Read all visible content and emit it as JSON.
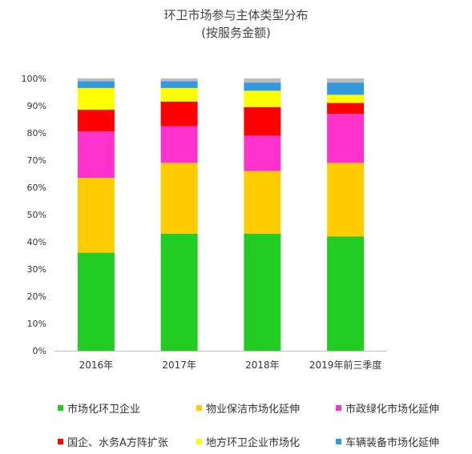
{
  "chart_data": {
    "type": "bar",
    "stacked": true,
    "title": "环卫市场参与主体类型分布",
    "subtitle": "(按服务金额)",
    "xlabel": "",
    "ylabel": "",
    "ylim": [
      0,
      100
    ],
    "y_ticks": [
      "0%",
      "10%",
      "20%",
      "30%",
      "40%",
      "50%",
      "60%",
      "70%",
      "80%",
      "90%",
      "100%"
    ],
    "categories": [
      "2016年",
      "2017年",
      "2018年",
      "2019年前三季度"
    ],
    "grid": false,
    "legend_position": "bottom",
    "series": [
      {
        "name": "市场化环卫企业",
        "color": "#22cc22",
        "values": [
          36,
          43,
          43,
          42
        ]
      },
      {
        "name": "物业保洁市场化延伸",
        "color": "#ffcc00",
        "values": [
          27.5,
          26,
          23,
          27
        ]
      },
      {
        "name": "市政绿化市场化延伸",
        "color": "#ff33cc",
        "values": [
          17,
          13.5,
          13,
          18
        ]
      },
      {
        "name": "国企、水务A方阵扩张",
        "color": "#ff0000",
        "values": [
          8,
          9,
          10.5,
          4
        ]
      },
      {
        "name": "地方环卫企业市场化",
        "color": "#ffff00",
        "values": [
          8,
          5,
          6,
          3
        ]
      },
      {
        "name": "车辆装备市场化延伸",
        "color": "#3399dd",
        "values": [
          2.5,
          2.5,
          3,
          4.5
        ]
      },
      {
        "name": "",
        "color": "#bbbbbb",
        "values": [
          1,
          1,
          1.5,
          1.5
        ]
      }
    ]
  }
}
